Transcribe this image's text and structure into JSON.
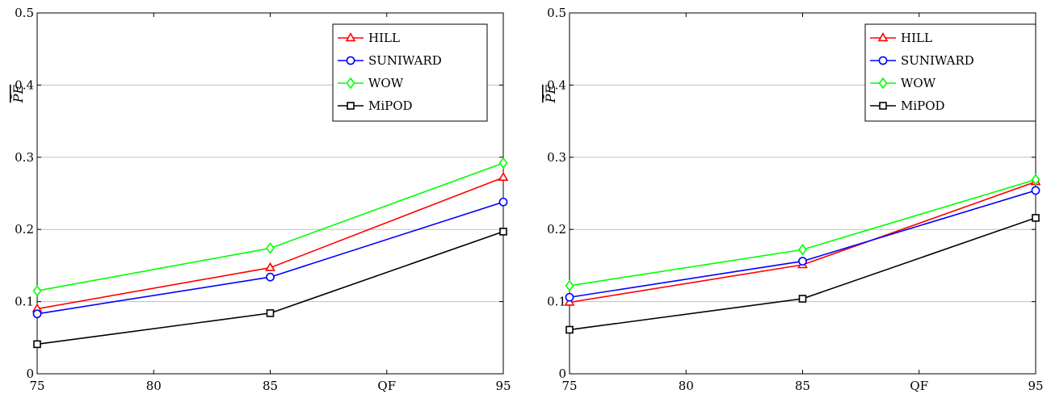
{
  "chart_data": [
    {
      "type": "line",
      "x": [
        75,
        85,
        95
      ],
      "xticks": [
        "75",
        "80",
        "85",
        "QF",
        "95"
      ],
      "yticks": [
        "0",
        "0.1",
        "0.2",
        "0.3",
        "0.4",
        "0.5"
      ],
      "ylabel": "P̄E",
      "ylim": [
        0,
        0.5
      ],
      "xlim": [
        75,
        95
      ],
      "grid": true,
      "legend_position": "top-right",
      "series": [
        {
          "name": "HILL",
          "color": "#ff0000",
          "marker": "triangle",
          "values": [
            0.09,
            0.147,
            0.272
          ]
        },
        {
          "name": "SUNIWARD",
          "color": "#0000ff",
          "marker": "circle",
          "values": [
            0.083,
            0.134,
            0.238
          ]
        },
        {
          "name": "WOW",
          "color": "#00ff00",
          "marker": "diamond",
          "values": [
            0.115,
            0.174,
            0.292
          ]
        },
        {
          "name": "MiPOD",
          "color": "#000000",
          "marker": "square",
          "values": [
            0.041,
            0.084,
            0.197
          ]
        }
      ]
    },
    {
      "type": "line",
      "x": [
        75,
        85,
        95
      ],
      "xticks": [
        "75",
        "80",
        "85",
        "QF",
        "95"
      ],
      "yticks": [
        "0",
        "0.1",
        "0.2",
        "0.3",
        "0.4",
        "0.5"
      ],
      "ylabel": "P̄E",
      "ylim": [
        0,
        0.5
      ],
      "xlim": [
        75,
        95
      ],
      "grid": true,
      "legend_position": "top-right",
      "series": [
        {
          "name": "HILL",
          "color": "#ff0000",
          "marker": "triangle",
          "values": [
            0.099,
            0.151,
            0.266
          ]
        },
        {
          "name": "SUNIWARD",
          "color": "#0000ff",
          "marker": "circle",
          "values": [
            0.106,
            0.156,
            0.254
          ]
        },
        {
          "name": "WOW",
          "color": "#00ff00",
          "marker": "diamond",
          "values": [
            0.122,
            0.172,
            0.269
          ]
        },
        {
          "name": "MiPOD",
          "color": "#000000",
          "marker": "square",
          "values": [
            0.061,
            0.104,
            0.216
          ]
        }
      ]
    }
  ]
}
